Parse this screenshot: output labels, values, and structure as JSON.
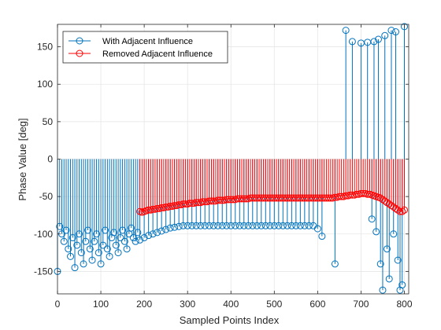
{
  "chart_data": {
    "type": "stem",
    "xlabel": "Sampled Points Index",
    "ylabel": "Phase Value [deg]",
    "xlim": [
      0,
      810
    ],
    "ylim": [
      -180,
      180
    ],
    "xticks": [
      0,
      100,
      200,
      300,
      400,
      500,
      600,
      700,
      800
    ],
    "yticks": [
      -150,
      -100,
      -50,
      0,
      50,
      100,
      150
    ],
    "grid": true,
    "legend_position": "top-left",
    "series": [
      {
        "name": "With Adjacent Influence",
        "color": "#0072BD",
        "marker": "open-circle",
        "points": [
          [
            0,
            -150
          ],
          [
            5,
            -90
          ],
          [
            10,
            -100
          ],
          [
            15,
            -110
          ],
          [
            20,
            -95
          ],
          [
            25,
            -120
          ],
          [
            30,
            -130
          ],
          [
            35,
            -105
          ],
          [
            40,
            -145
          ],
          [
            45,
            -115
          ],
          [
            50,
            -100
          ],
          [
            55,
            -125
          ],
          [
            60,
            -140
          ],
          [
            65,
            -110
          ],
          [
            70,
            -95
          ],
          [
            75,
            -120
          ],
          [
            80,
            -135
          ],
          [
            85,
            -110
          ],
          [
            90,
            -100
          ],
          [
            95,
            -125
          ],
          [
            100,
            -140
          ],
          [
            105,
            -115
          ],
          [
            110,
            -95
          ],
          [
            115,
            -120
          ],
          [
            120,
            -130
          ],
          [
            125,
            -105
          ],
          [
            130,
            -98
          ],
          [
            135,
            -115
          ],
          [
            140,
            -125
          ],
          [
            145,
            -105
          ],
          [
            150,
            -95
          ],
          [
            155,
            -110
          ],
          [
            160,
            -120
          ],
          [
            165,
            -100
          ],
          [
            170,
            -92
          ],
          [
            175,
            -105
          ],
          [
            180,
            -110
          ],
          [
            185,
            -98
          ],
          [
            190,
            -108
          ],
          [
            200,
            -105
          ],
          [
            210,
            -102
          ],
          [
            220,
            -100
          ],
          [
            230,
            -98
          ],
          [
            240,
            -96
          ],
          [
            250,
            -94
          ],
          [
            260,
            -92
          ],
          [
            270,
            -91
          ],
          [
            280,
            -90
          ],
          [
            290,
            -89
          ],
          [
            300,
            -89
          ],
          [
            310,
            -89
          ],
          [
            320,
            -89
          ],
          [
            330,
            -89
          ],
          [
            340,
            -89
          ],
          [
            350,
            -89
          ],
          [
            360,
            -89
          ],
          [
            370,
            -89
          ],
          [
            380,
            -89
          ],
          [
            390,
            -89
          ],
          [
            400,
            -89
          ],
          [
            410,
            -89
          ],
          [
            420,
            -89
          ],
          [
            430,
            -89
          ],
          [
            440,
            -89
          ],
          [
            450,
            -89
          ],
          [
            460,
            -89
          ],
          [
            470,
            -89
          ],
          [
            480,
            -89
          ],
          [
            490,
            -89
          ],
          [
            500,
            -89
          ],
          [
            510,
            -89
          ],
          [
            520,
            -89
          ],
          [
            530,
            -89
          ],
          [
            540,
            -89
          ],
          [
            550,
            -89
          ],
          [
            560,
            -89
          ],
          [
            570,
            -89
          ],
          [
            580,
            -89
          ],
          [
            590,
            -89
          ],
          [
            600,
            -93
          ],
          [
            610,
            -103
          ],
          [
            640,
            -140
          ],
          [
            665,
            172
          ],
          [
            680,
            157
          ],
          [
            700,
            155
          ],
          [
            715,
            156
          ],
          [
            725,
            -80
          ],
          [
            730,
            157
          ],
          [
            735,
            -97
          ],
          [
            740,
            160
          ],
          [
            745,
            -140
          ],
          [
            750,
            -175
          ],
          [
            755,
            165
          ],
          [
            760,
            -120
          ],
          [
            765,
            -160
          ],
          [
            770,
            172
          ],
          [
            775,
            -100
          ],
          [
            780,
            170
          ],
          [
            785,
            -135
          ],
          [
            790,
            -175
          ],
          [
            795,
            -168
          ],
          [
            800,
            177
          ]
        ]
      },
      {
        "name": "Removed Adjacent Influence",
        "color": "#FF0000",
        "marker": "open-circle",
        "points": [
          [
            190,
            -70
          ],
          [
            195,
            -71
          ],
          [
            200,
            -70
          ],
          [
            205,
            -69
          ],
          [
            210,
            -68
          ],
          [
            215,
            -68
          ],
          [
            220,
            -67
          ],
          [
            225,
            -67
          ],
          [
            230,
            -66
          ],
          [
            235,
            -66
          ],
          [
            240,
            -65
          ],
          [
            245,
            -65
          ],
          [
            250,
            -64
          ],
          [
            255,
            -64
          ],
          [
            260,
            -63
          ],
          [
            265,
            -63
          ],
          [
            270,
            -62
          ],
          [
            275,
            -62
          ],
          [
            280,
            -61
          ],
          [
            285,
            -61
          ],
          [
            290,
            -60
          ],
          [
            295,
            -60
          ],
          [
            300,
            -60
          ],
          [
            305,
            -59
          ],
          [
            310,
            -59
          ],
          [
            315,
            -59
          ],
          [
            320,
            -58
          ],
          [
            325,
            -58
          ],
          [
            330,
            -58
          ],
          [
            335,
            -57
          ],
          [
            340,
            -57
          ],
          [
            345,
            -57
          ],
          [
            350,
            -56
          ],
          [
            355,
            -56
          ],
          [
            360,
            -56
          ],
          [
            365,
            -56
          ],
          [
            370,
            -55
          ],
          [
            375,
            -55
          ],
          [
            380,
            -55
          ],
          [
            385,
            -55
          ],
          [
            390,
            -54
          ],
          [
            395,
            -54
          ],
          [
            400,
            -54
          ],
          [
            405,
            -54
          ],
          [
            410,
            -54
          ],
          [
            415,
            -53
          ],
          [
            420,
            -53
          ],
          [
            425,
            -53
          ],
          [
            430,
            -53
          ],
          [
            435,
            -53
          ],
          [
            440,
            -53
          ],
          [
            445,
            -52
          ],
          [
            450,
            -52
          ],
          [
            455,
            -52
          ],
          [
            460,
            -52
          ],
          [
            465,
            -52
          ],
          [
            470,
            -52
          ],
          [
            475,
            -52
          ],
          [
            480,
            -52
          ],
          [
            485,
            -52
          ],
          [
            490,
            -52
          ],
          [
            495,
            -52
          ],
          [
            500,
            -52
          ],
          [
            505,
            -52
          ],
          [
            510,
            -52
          ],
          [
            515,
            -52
          ],
          [
            520,
            -52
          ],
          [
            525,
            -52
          ],
          [
            530,
            -52
          ],
          [
            535,
            -52
          ],
          [
            540,
            -52
          ],
          [
            545,
            -52
          ],
          [
            550,
            -52
          ],
          [
            555,
            -52
          ],
          [
            560,
            -52
          ],
          [
            565,
            -52
          ],
          [
            570,
            -52
          ],
          [
            575,
            -52
          ],
          [
            580,
            -52
          ],
          [
            585,
            -52
          ],
          [
            590,
            -52
          ],
          [
            595,
            -52
          ],
          [
            600,
            -52
          ],
          [
            605,
            -52
          ],
          [
            610,
            -52
          ],
          [
            615,
            -52
          ],
          [
            620,
            -52
          ],
          [
            625,
            -52
          ],
          [
            630,
            -52
          ],
          [
            635,
            -52
          ],
          [
            640,
            -51
          ],
          [
            645,
            -51
          ],
          [
            650,
            -50
          ],
          [
            655,
            -50
          ],
          [
            660,
            -50
          ],
          [
            665,
            -49
          ],
          [
            670,
            -49
          ],
          [
            675,
            -48
          ],
          [
            680,
            -48
          ],
          [
            685,
            -48
          ],
          [
            690,
            -47
          ],
          [
            695,
            -47
          ],
          [
            700,
            -46
          ],
          [
            705,
            -46
          ],
          [
            710,
            -46
          ],
          [
            715,
            -47
          ],
          [
            720,
            -47
          ],
          [
            725,
            -48
          ],
          [
            730,
            -49
          ],
          [
            735,
            -50
          ],
          [
            740,
            -51
          ],
          [
            745,
            -52
          ],
          [
            750,
            -54
          ],
          [
            755,
            -56
          ],
          [
            760,
            -58
          ],
          [
            765,
            -60
          ],
          [
            770,
            -62
          ],
          [
            775,
            -64
          ],
          [
            780,
            -66
          ],
          [
            785,
            -68
          ],
          [
            790,
            -70
          ],
          [
            795,
            -70
          ],
          [
            800,
            -68
          ]
        ]
      }
    ]
  }
}
